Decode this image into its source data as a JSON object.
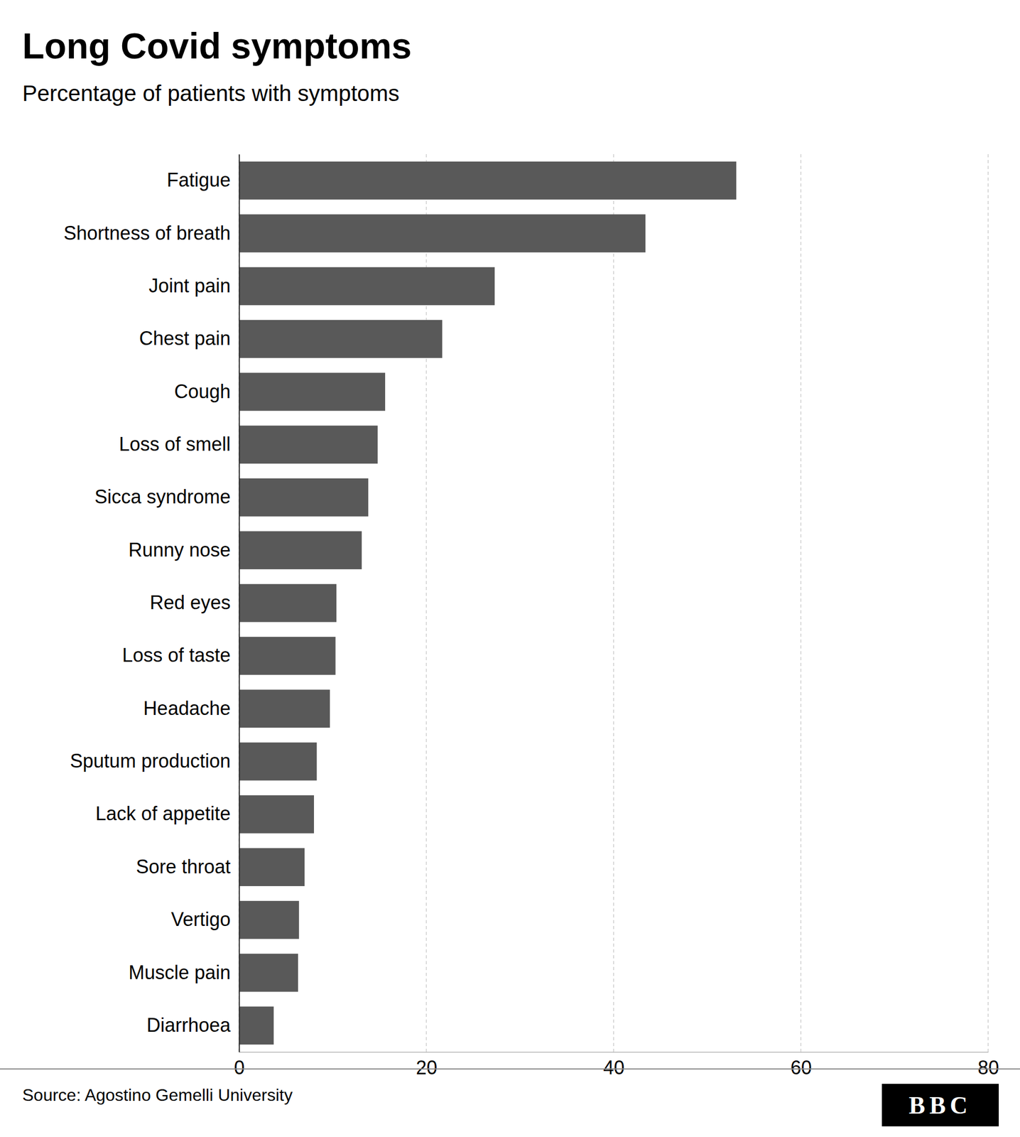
{
  "chart_data": {
    "type": "bar",
    "orientation": "horizontal",
    "title": "Long Covid symptoms",
    "subtitle": "Percentage of patients with symptoms",
    "annotations": [
      "Source: Agostino Gemelli University",
      "BBC"
    ],
    "categories": [
      "Fatigue",
      "Shortness of breath",
      "Joint pain",
      "Chest pain",
      "Cough",
      "Loss of smell",
      "Sicca syndrome",
      "Runny nose",
      "Red eyes",
      "Loss of taste",
      "Headache",
      "Sputum production",
      "Lack of appetite",
      "Sore throat",
      "Vertigo",
      "Muscle pain",
      "Diarrhoea"
    ],
    "values": [
      53.1,
      43.4,
      27.3,
      21.7,
      15.6,
      14.8,
      13.8,
      13.1,
      10.4,
      10.3,
      9.7,
      8.3,
      8.0,
      7.0,
      6.4,
      6.3,
      3.7
    ],
    "color": "#595959",
    "xlim": [
      0,
      80
    ],
    "xticks": [
      0,
      20,
      40,
      60,
      80
    ],
    "grid": true
  }
}
